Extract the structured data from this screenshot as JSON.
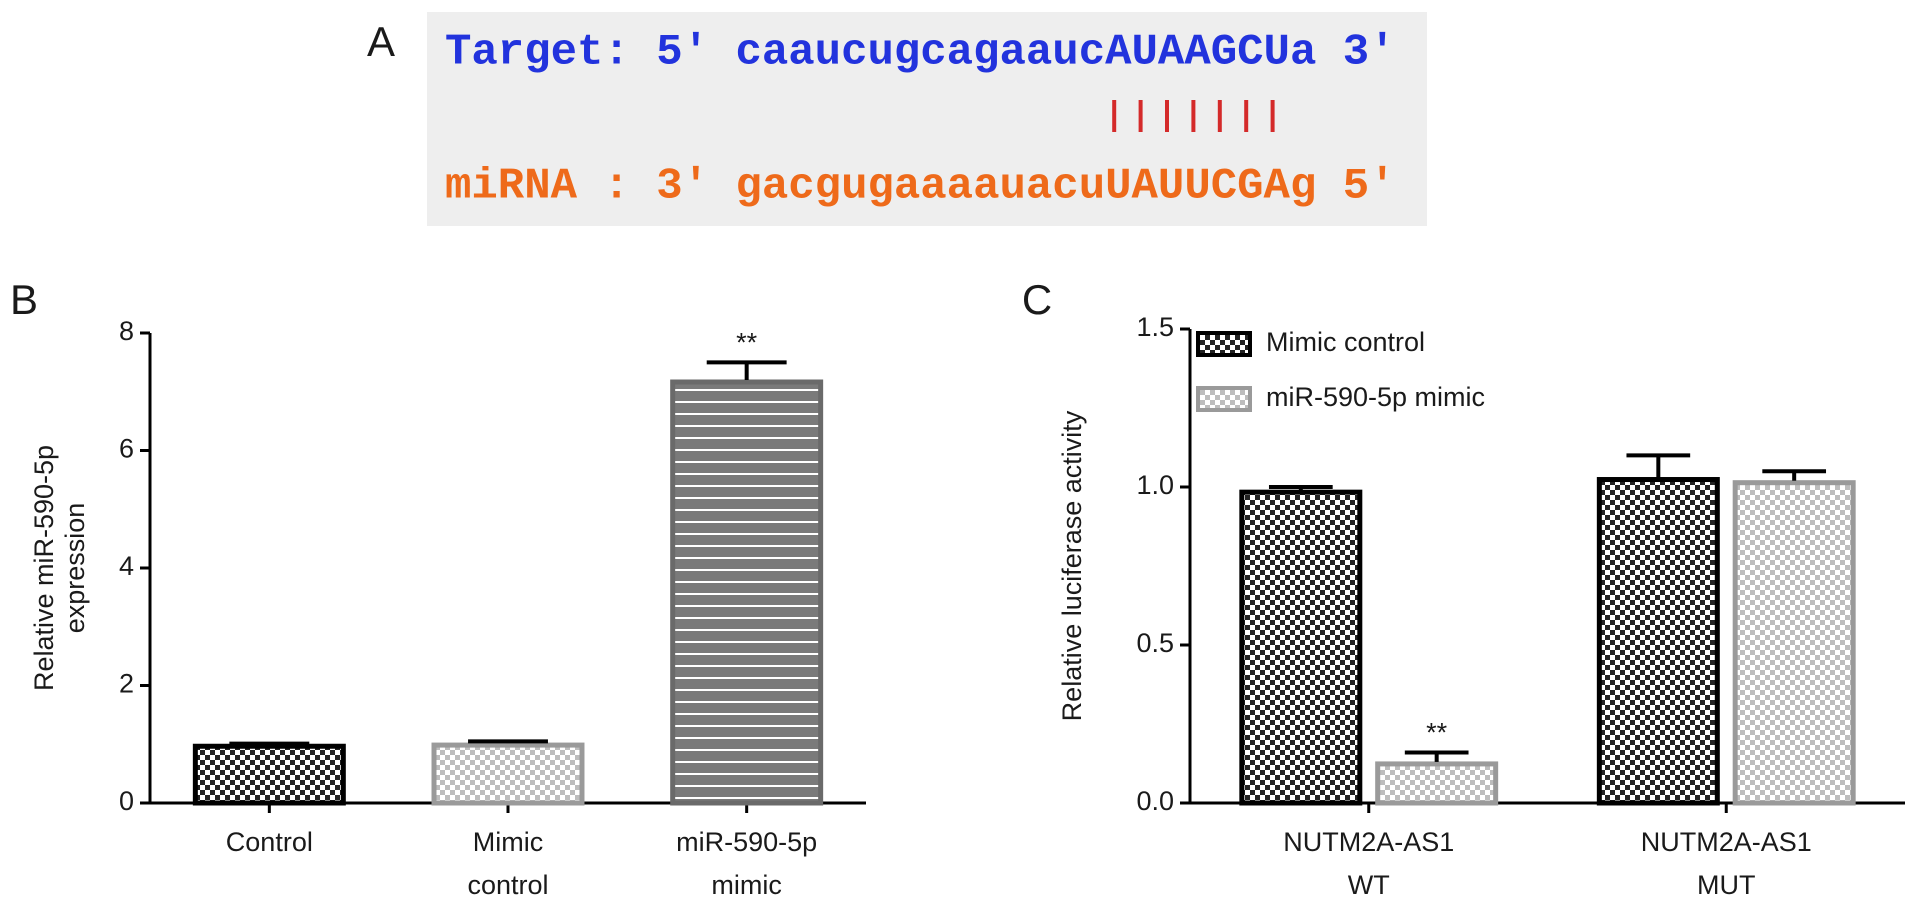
{
  "alignment": {
    "panel_label": "A",
    "target": "Target: 5' caaucugcagaaucAUAAGCUa 3'",
    "mirna": "miRNA : 3' gacgugaaaauacuUAUUCGAg 5'"
  },
  "chart_data": [
    {
      "type": "bar",
      "panel_label": "B",
      "y_label": "Relative miR-590-5p\nexpression",
      "categories": [
        "Control",
        "Mimic\ncontrol",
        "miR-590-5p\nmimic"
      ],
      "values": [
        1.0,
        1.02,
        7.2
      ],
      "errors": [
        0.01,
        0.03,
        0.3
      ],
      "patterns": [
        "checker-dark",
        "checker-light",
        "stripes"
      ],
      "colors": [
        "#222222",
        "#bdbdbd",
        "#7a7a7a"
      ],
      "ylim": [
        0,
        8
      ],
      "yticks": [
        0,
        2,
        4,
        6,
        8
      ],
      "annotations": [
        {
          "text": "**",
          "category": 2
        }
      ]
    },
    {
      "type": "grouped-bar",
      "panel_label": "C",
      "y_label": "Relative luciferase activity",
      "categories": [
        "NUTM2A-AS1\nWT",
        "NUTM2A-AS1\nMUT"
      ],
      "series": [
        {
          "name": "Mimic control",
          "color": "#222222",
          "pattern": "checker-dark",
          "values": [
            0.99,
            1.03
          ],
          "errors": [
            0.01,
            0.07
          ]
        },
        {
          "name": "miR-590-5p mimic",
          "color": "#bdbdbd",
          "pattern": "checker-light",
          "values": [
            0.13,
            1.02
          ],
          "errors": [
            0.03,
            0.03
          ]
        }
      ],
      "ylim": [
        0,
        1.5
      ],
      "yticks": [
        {
          "value": 0,
          "label": "0.0"
        },
        {
          "value": 0.5,
          "label": "0.5"
        },
        {
          "value": 1.0,
          "label": "1.0"
        },
        1.5
      ],
      "legend": "upper left",
      "annotations": [
        {
          "text": "**",
          "category": 0,
          "series": 1
        }
      ]
    }
  ]
}
